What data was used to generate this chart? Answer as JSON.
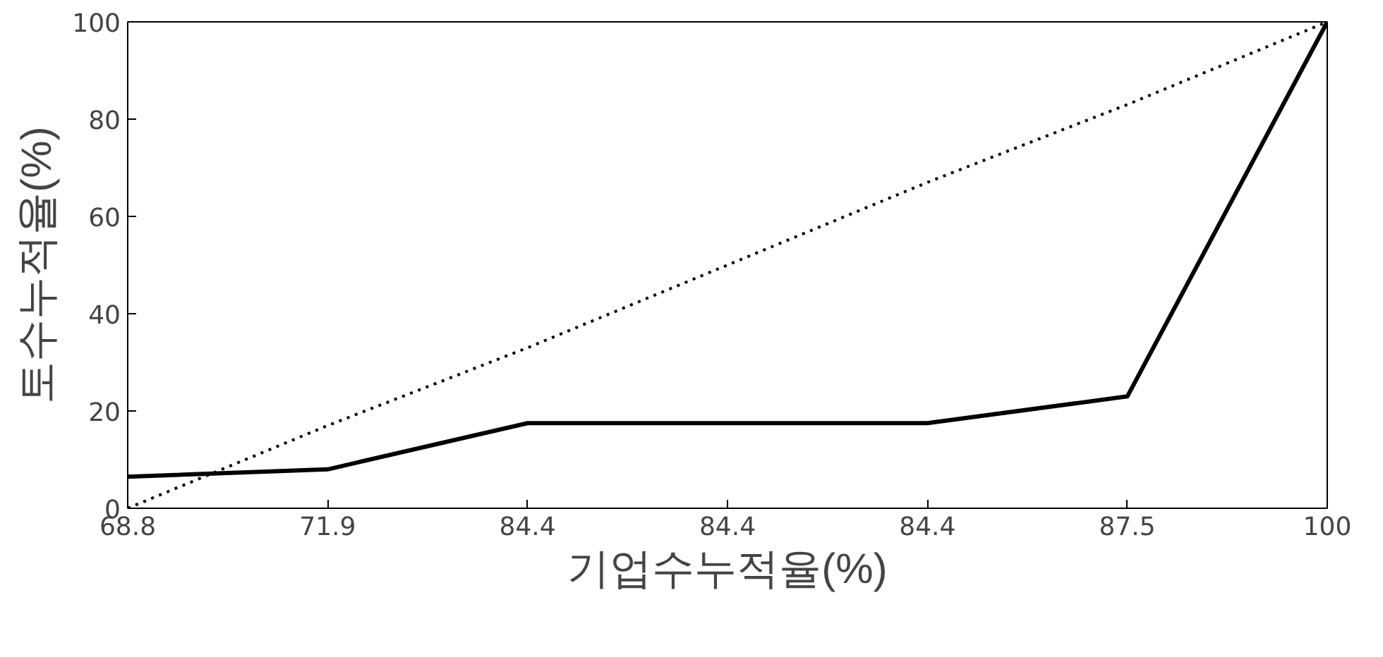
{
  "chart_data": {
    "type": "line",
    "xlabel": "기업수누적율(%)",
    "ylabel": "토수누적율(%)",
    "categories": [
      "68.8",
      "71.9",
      "84.4",
      "84.4",
      "84.4",
      "87.5",
      "100"
    ],
    "ylim": [
      0,
      100
    ],
    "yticks": [
      0,
      20,
      40,
      60,
      80,
      100
    ],
    "grid": false,
    "series": [
      {
        "color": "#000000",
        "line_style": "solid",
        "values": [
          6.5,
          8,
          17.5,
          17.5,
          17.5,
          23,
          100
        ]
      },
      {
        "color": "#000000",
        "line_style": "dotted",
        "values": [
          0,
          17,
          33,
          50,
          67,
          83,
          100
        ]
      }
    ]
  }
}
